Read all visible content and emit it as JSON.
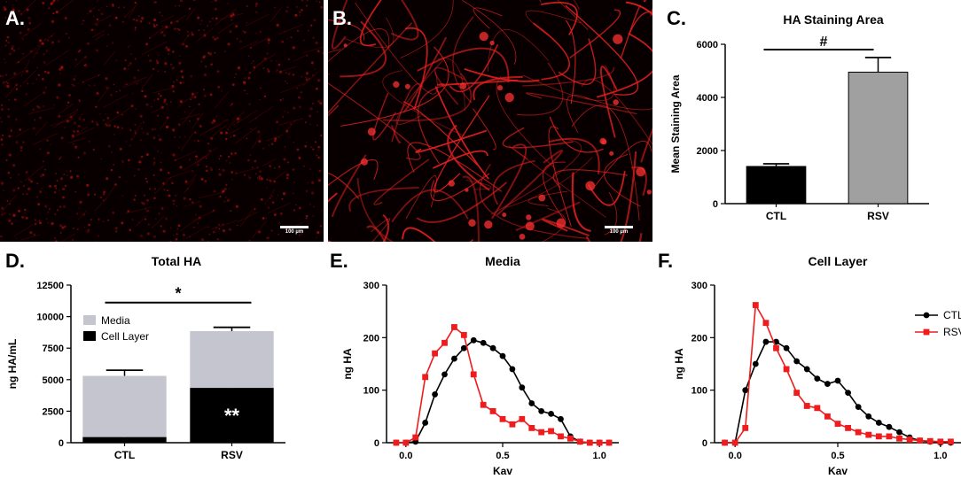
{
  "panels": {
    "a": {
      "letter": "A.",
      "scale_bar": "100 µm"
    },
    "b": {
      "letter": "B.",
      "scale_bar": "100 µm"
    }
  },
  "chart_data": [
    {
      "id": "C",
      "letter": "C.",
      "type": "bar",
      "title": "HA Staining Area",
      "xlabel": "",
      "ylabel": "Mean Staining Area",
      "categories": [
        "CTL",
        "RSV"
      ],
      "values": [
        1400,
        4950
      ],
      "errors": [
        100,
        550
      ],
      "colors": [
        "#000000",
        "#a0a0a0"
      ],
      "ylim": [
        0,
        6000
      ],
      "yticks": [
        0,
        2000,
        4000,
        6000
      ],
      "significance": "#"
    },
    {
      "id": "D",
      "letter": "D.",
      "type": "bar",
      "stacked": true,
      "title": "Total HA",
      "xlabel": "",
      "ylabel": "ng HA/mL",
      "categories": [
        "CTL",
        "RSV"
      ],
      "series": [
        {
          "name": "Cell Layer",
          "values": [
            450,
            4350
          ],
          "errors": [
            300,
            200
          ],
          "color": "#000000"
        },
        {
          "name": "Media",
          "values": [
            4850,
            4500
          ],
          "errors": [
            450,
            300
          ],
          "color": "#c5c5cf"
        }
      ],
      "ylim": [
        0,
        12500
      ],
      "yticks": [
        0,
        2500,
        5000,
        7500,
        10000,
        12500
      ],
      "significance": "*",
      "bar_annotation": "**",
      "legend": "top-left"
    },
    {
      "id": "E",
      "letter": "E.",
      "type": "line",
      "title": "Media",
      "xlabel": "Kav",
      "ylabel": "ng HA",
      "xlim": [
        -0.1,
        1.1
      ],
      "ylim": [
        0,
        300
      ],
      "xticks": [
        0.0,
        0.5,
        1.0
      ],
      "yticks": [
        0,
        100,
        200,
        300
      ],
      "series": [
        {
          "name": "CTL",
          "color": "#000000",
          "marker": "circle",
          "x": [
            -0.05,
            0.0,
            0.05,
            0.1,
            0.15,
            0.2,
            0.25,
            0.3,
            0.35,
            0.4,
            0.45,
            0.5,
            0.55,
            0.6,
            0.65,
            0.7,
            0.75,
            0.8,
            0.85,
            0.9,
            0.95,
            1.0,
            1.05
          ],
          "y": [
            0,
            0,
            2,
            38,
            92,
            130,
            160,
            180,
            195,
            190,
            180,
            165,
            140,
            105,
            75,
            60,
            55,
            45,
            12,
            2,
            0,
            0,
            0
          ]
        },
        {
          "name": "RSV",
          "color": "#ee1c1c",
          "marker": "square",
          "x": [
            -0.05,
            0.0,
            0.05,
            0.1,
            0.15,
            0.2,
            0.25,
            0.3,
            0.35,
            0.4,
            0.45,
            0.5,
            0.55,
            0.6,
            0.65,
            0.7,
            0.75,
            0.8,
            0.85,
            0.9,
            0.95,
            1.0,
            1.05
          ],
          "y": [
            0,
            0,
            10,
            125,
            170,
            190,
            220,
            205,
            130,
            72,
            60,
            45,
            35,
            45,
            28,
            20,
            22,
            12,
            8,
            2,
            0,
            0,
            0
          ]
        }
      ]
    },
    {
      "id": "F",
      "letter": "F.",
      "type": "line",
      "title": "Cell Layer",
      "xlabel": "Kav",
      "ylabel": "ng HA",
      "xlim": [
        -0.1,
        1.1
      ],
      "ylim": [
        0,
        300
      ],
      "xticks": [
        0.0,
        0.5,
        1.0
      ],
      "yticks": [
        0,
        100,
        200,
        300
      ],
      "legend": "top-right",
      "series": [
        {
          "name": "CTL",
          "color": "#000000",
          "marker": "circle",
          "x": [
            -0.05,
            0.0,
            0.05,
            0.1,
            0.15,
            0.2,
            0.25,
            0.3,
            0.35,
            0.4,
            0.45,
            0.5,
            0.55,
            0.6,
            0.65,
            0.7,
            0.75,
            0.8,
            0.85,
            0.9,
            0.95,
            1.0,
            1.05
          ],
          "y": [
            0,
            0,
            100,
            150,
            192,
            192,
            180,
            155,
            140,
            122,
            112,
            118,
            95,
            68,
            50,
            38,
            30,
            20,
            10,
            4,
            2,
            0,
            0
          ]
        },
        {
          "name": "RSV",
          "color": "#ee1c1c",
          "marker": "square",
          "x": [
            -0.05,
            0.0,
            0.05,
            0.1,
            0.15,
            0.2,
            0.25,
            0.3,
            0.35,
            0.4,
            0.45,
            0.5,
            0.55,
            0.6,
            0.65,
            0.7,
            0.75,
            0.8,
            0.85,
            0.9,
            0.95,
            1.0,
            1.05
          ],
          "y": [
            0,
            0,
            28,
            262,
            228,
            180,
            140,
            95,
            70,
            66,
            50,
            36,
            28,
            20,
            15,
            12,
            12,
            8,
            6,
            4,
            3,
            2,
            2
          ]
        }
      ]
    }
  ]
}
